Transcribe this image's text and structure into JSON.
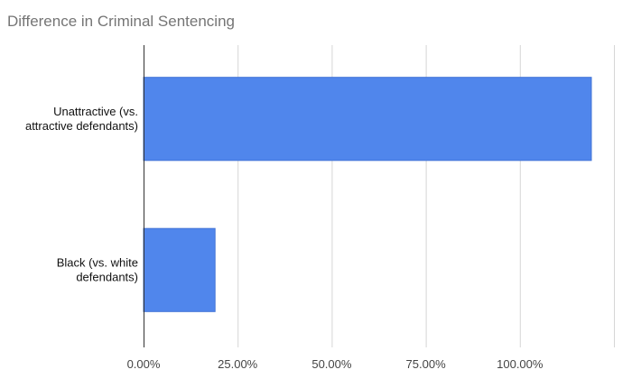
{
  "chart_data": {
    "type": "bar",
    "orientation": "horizontal",
    "title": "Difference in Criminal Sentencing",
    "categories": [
      [
        "Unattractive (vs.",
        "attractive defendants)"
      ],
      [
        "Black (vs. white",
        "defendants)"
      ]
    ],
    "values": [
      1.19,
      0.19
    ],
    "xlim": [
      0,
      1.25
    ],
    "x_ticks": [
      0,
      0.25,
      0.5,
      0.75,
      1.0,
      1.25
    ],
    "x_tick_labels": [
      "0.00%",
      "25.00%",
      "50.00%",
      "75.00%",
      "100.00%",
      ""
    ],
    "xlabel": "",
    "ylabel": "",
    "grid": true,
    "legend": "none",
    "colors": {
      "bar": "#5086ec",
      "bar_edge": "#4173d6",
      "title": "#757575"
    }
  }
}
